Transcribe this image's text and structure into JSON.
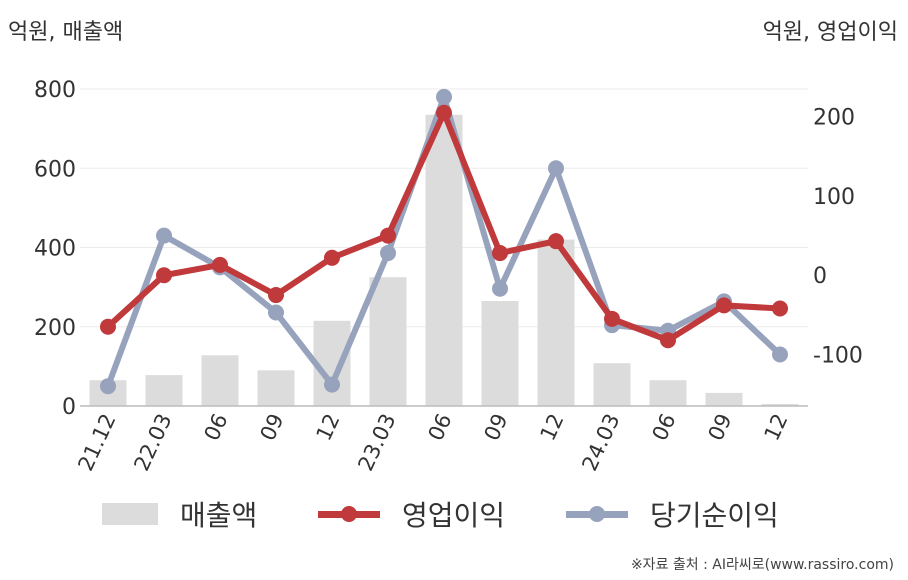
{
  "units": {
    "left": "억원, 매출액",
    "right": "억원, 영업이익"
  },
  "legend": [
    {
      "label": "매출액",
      "kind": "bar"
    },
    {
      "label": "영업이익",
      "kind": "line"
    },
    {
      "label": "당기순이익",
      "kind": "line"
    }
  ],
  "source": "※자료 출처 : AI라씨로(www.rassiro.com)",
  "colors": {
    "revenue": "#dcdcdc",
    "operating_profit": "#c0393b",
    "net_income": "#97a3bd",
    "axis": "#bbbbbb",
    "grid": "#ebebeb",
    "text": "#333333"
  },
  "chart_data": {
    "type": "bar",
    "categories": [
      "21.12",
      "22.03",
      "06",
      "09",
      "12",
      "23.03",
      "06",
      "09",
      "12",
      "24.03",
      "06",
      "09",
      "12"
    ],
    "y_left": {
      "label": "억원, 매출액",
      "ylim": [
        0,
        800
      ],
      "ticks": [
        0,
        200,
        400,
        600,
        800
      ]
    },
    "y_right": {
      "label": "억원, 영업이익",
      "ylim": [
        -165,
        235
      ],
      "ticks": [
        -100,
        0,
        100,
        200
      ]
    },
    "grid": true,
    "legend_position": "bottom",
    "series": [
      {
        "name": "매출액",
        "type": "bar",
        "axis": "left",
        "values": [
          65,
          78,
          128,
          90,
          215,
          325,
          735,
          265,
          420,
          108,
          65,
          33,
          5
        ]
      },
      {
        "name": "영업이익",
        "type": "line",
        "axis": "right",
        "values": [
          -65,
          0,
          13,
          -25,
          22,
          50,
          205,
          28,
          43,
          -55,
          -82,
          -38,
          -42
        ]
      },
      {
        "name": "당기순이익",
        "type": "line",
        "axis": "right",
        "values": [
          -140,
          50,
          10,
          -47,
          -138,
          28,
          225,
          -17,
          135,
          -63,
          -70,
          -33,
          -100
        ]
      }
    ]
  }
}
